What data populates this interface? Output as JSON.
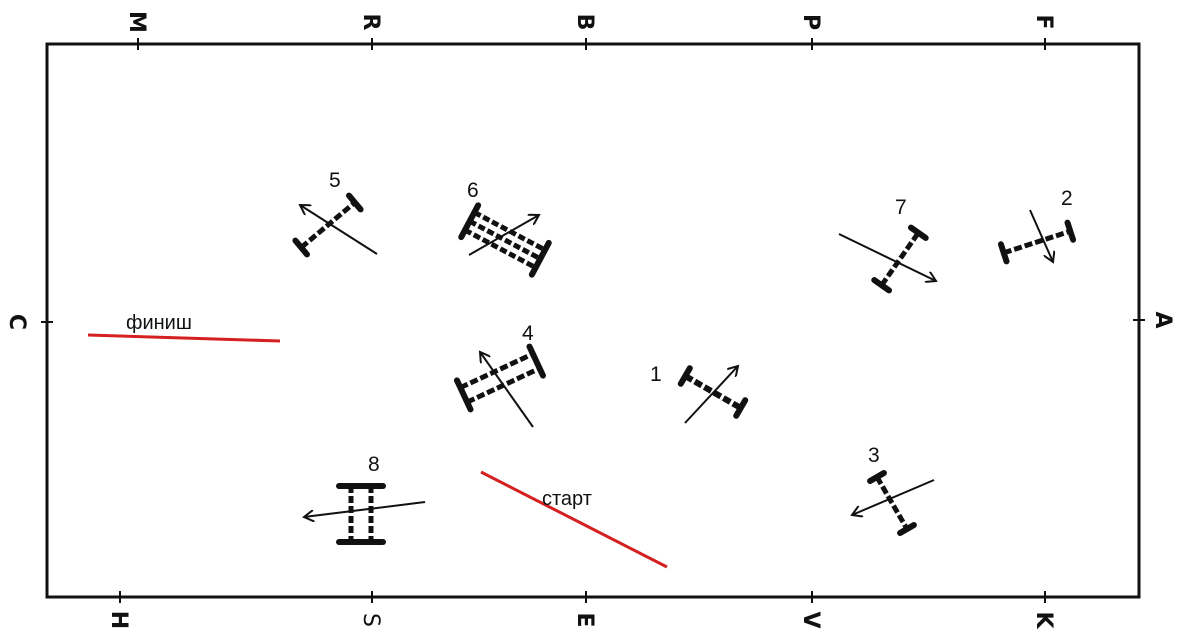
{
  "arena": {
    "letters_top": [
      "M",
      "R",
      "B",
      "P",
      "F"
    ],
    "letters_bottom": [
      "H",
      "S",
      "E",
      "V",
      "K"
    ],
    "letter_left": "C",
    "letter_right": "A"
  },
  "labels": {
    "finish": "финиш",
    "start": "старт"
  },
  "figures": [
    {
      "id": "1",
      "label": "1"
    },
    {
      "id": "2",
      "label": "2"
    },
    {
      "id": "3",
      "label": "3"
    },
    {
      "id": "4",
      "label": "4"
    },
    {
      "id": "5",
      "label": "5"
    },
    {
      "id": "6",
      "label": "6"
    },
    {
      "id": "7",
      "label": "7"
    },
    {
      "id": "8",
      "label": "8"
    }
  ],
  "colors": {
    "line": "#111111",
    "start_finish": "#d42020"
  }
}
